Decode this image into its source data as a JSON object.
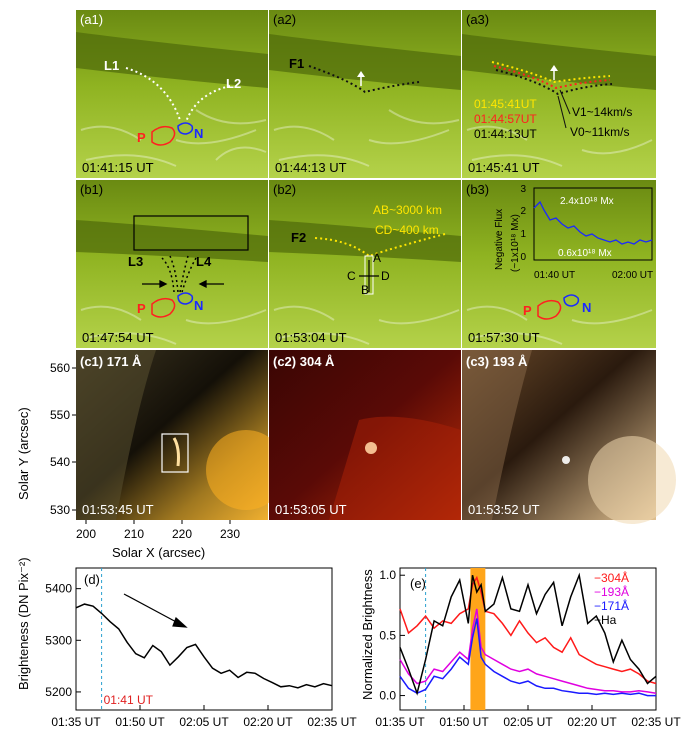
{
  "panels_a": [
    {
      "tag": "(a1)",
      "time": "01:41:15 UT"
    },
    {
      "tag": "(a2)",
      "time": "01:44:13 UT"
    },
    {
      "tag": "(a3)",
      "time": "01:45:41 UT"
    }
  ],
  "panels_b": [
    {
      "tag": "(b1)",
      "time": "01:47:54 UT"
    },
    {
      "tag": "(b2)",
      "time": "01:53:04 UT"
    },
    {
      "tag": "(b3)",
      "time": "01:57:30 UT"
    }
  ],
  "panels_c": [
    {
      "tag": "(c1) 171 Å",
      "time": "01:53:45 UT"
    },
    {
      "tag": "(c2) 304 Å",
      "time": "01:53:05 UT"
    },
    {
      "tag": "(c3) 193 Å",
      "time": "01:53:52 UT"
    }
  ],
  "labels": {
    "L1": "L1",
    "L2": "L2",
    "L3": "L3",
    "L4": "L4",
    "F1": "F1",
    "F2": "F2",
    "P": "P",
    "N": "N",
    "A": "A",
    "B": "B",
    "C": "C",
    "D": "D",
    "a3_t1": "01:45:41UT",
    "a3_t2": "01:44:57UT",
    "a3_t3": "01:44:13UT",
    "v1": "V1~14km/s",
    "v0": "V0~11km/s",
    "ab": "AB~3000 km",
    "cd": "CD~400 km"
  },
  "inset_b3": {
    "ylabel1": "Negative Flux",
    "ylabel2": "(~1x10¹⁸ Mx)",
    "flux_hi": "2.4x10¹⁸ Mx",
    "flux_lo": "0.6x10¹⁸ Mx",
    "yticks": [
      "0",
      "1",
      "2",
      "3"
    ],
    "xticks": [
      "01:40 UT",
      "02:00 UT"
    ]
  },
  "axes_c": {
    "ylabel": "Solar Y (arcsec)",
    "xlabel": "Solar X (arcsec)",
    "yticks": [
      "560",
      "550",
      "540",
      "530"
    ],
    "xticks": [
      "200",
      "210",
      "220",
      "230"
    ]
  },
  "chart_data": [
    {
      "type": "line",
      "panel": "(d)",
      "ylabel": "Brighteness (DN Pix⁻²)",
      "xticks": [
        "01:35 UT",
        "01:50 UT",
        "02:05 UT",
        "02:20 UT",
        "02:35 UT"
      ],
      "yticks": [
        "5200",
        "5300",
        "5400"
      ],
      "ylim": [
        5165,
        5440
      ],
      "xlim_min": [
        0,
        60
      ],
      "marker": "01:41 UT",
      "marker_min": 6,
      "series": [
        {
          "x_min": [
            0,
            2,
            4,
            6,
            8,
            10,
            12,
            14,
            16,
            18,
            20,
            22,
            24,
            26,
            28,
            30,
            32,
            34,
            36,
            38,
            40,
            42,
            44,
            46,
            48,
            50,
            52,
            54,
            56,
            58,
            60
          ],
          "values": [
            5363,
            5370,
            5366,
            5352,
            5336,
            5322,
            5296,
            5274,
            5266,
            5290,
            5278,
            5252,
            5268,
            5286,
            5292,
            5268,
            5246,
            5236,
            5242,
            5228,
            5238,
            5236,
            5226,
            5218,
            5210,
            5212,
            5208,
            5214,
            5210,
            5216,
            5212
          ]
        }
      ]
    },
    {
      "type": "line",
      "panel": "(e)",
      "ylabel": "Normalized Brightness",
      "xticks": [
        "01:35 UT",
        "01:50 UT",
        "02:05 UT",
        "02:20 UT",
        "02:35 UT"
      ],
      "yticks": [
        "0.0",
        "0.5",
        "1.0"
      ],
      "ylim": [
        -0.12,
        1.06
      ],
      "xlim_min": [
        0,
        60
      ],
      "marker_min": 6,
      "shade_min": [
        16.5,
        20
      ],
      "series": [
        {
          "name": "304Å",
          "color": "#ff1a1a",
          "x_min": [
            0,
            2,
            4,
            6,
            8,
            10,
            12,
            14,
            16,
            17,
            18,
            19,
            20,
            22,
            24,
            26,
            28,
            30,
            32,
            34,
            36,
            38,
            40,
            42,
            44,
            46,
            48,
            50,
            52,
            54,
            56,
            58,
            60
          ],
          "values": [
            0.72,
            0.52,
            0.58,
            0.66,
            0.56,
            0.62,
            0.6,
            0.68,
            0.72,
            0.92,
            0.98,
            0.86,
            0.7,
            0.68,
            0.6,
            0.5,
            0.62,
            0.52,
            0.44,
            0.48,
            0.4,
            0.36,
            0.48,
            0.34,
            0.3,
            0.26,
            0.24,
            0.22,
            0.2,
            0.22,
            0.18,
            0.12,
            0.1
          ]
        },
        {
          "name": "193Å",
          "color": "#e000e0",
          "x_min": [
            0,
            2,
            4,
            6,
            8,
            10,
            12,
            14,
            16,
            17,
            18,
            19,
            20,
            22,
            24,
            26,
            28,
            30,
            32,
            34,
            36,
            38,
            40,
            42,
            44,
            46,
            48,
            50,
            52,
            54,
            56,
            58,
            60
          ],
          "values": [
            0.3,
            0.18,
            0.1,
            0.12,
            0.22,
            0.2,
            0.28,
            0.36,
            0.3,
            0.55,
            0.72,
            0.4,
            0.34,
            0.3,
            0.26,
            0.22,
            0.2,
            0.22,
            0.18,
            0.16,
            0.14,
            0.12,
            0.1,
            0.08,
            0.06,
            0.05,
            0.04,
            0.04,
            0.03,
            0.03,
            0.04,
            0.03,
            0.02
          ]
        },
        {
          "name": "171Å",
          "color": "#1a1aff",
          "x_min": [
            0,
            2,
            4,
            6,
            8,
            10,
            12,
            14,
            16,
            17,
            18,
            19,
            20,
            22,
            24,
            26,
            28,
            30,
            32,
            34,
            36,
            38,
            40,
            42,
            44,
            46,
            48,
            50,
            52,
            54,
            56,
            58,
            60
          ],
          "values": [
            0.16,
            0.06,
            0.02,
            0.05,
            0.16,
            0.14,
            0.22,
            0.32,
            0.26,
            0.48,
            0.64,
            0.32,
            0.26,
            0.2,
            0.16,
            0.12,
            0.1,
            0.12,
            0.08,
            0.06,
            0.06,
            0.04,
            0.03,
            0.02,
            0.02,
            0.01,
            0.02,
            0.01,
            0.02,
            0.01,
            0.02,
            0.0,
            0.0
          ]
        },
        {
          "name": "Ha",
          "color": "#000000",
          "x_min": [
            0,
            2,
            4,
            6,
            8,
            10,
            12,
            14,
            16,
            17,
            18,
            19,
            20,
            22,
            24,
            26,
            28,
            30,
            32,
            34,
            36,
            38,
            40,
            42,
            44,
            46,
            48,
            50,
            52,
            54,
            56,
            58,
            60
          ],
          "values": [
            0.4,
            0.22,
            0.02,
            0.3,
            0.62,
            0.58,
            0.82,
            0.96,
            0.6,
            1.0,
            0.86,
            0.92,
            0.7,
            0.76,
            0.98,
            0.72,
            0.7,
            0.92,
            0.68,
            0.84,
            0.94,
            0.58,
            0.82,
            1.0,
            0.6,
            0.66,
            0.52,
            0.28,
            0.46,
            0.3,
            0.22,
            0.1,
            0.16
          ]
        }
      ]
    }
  ]
}
